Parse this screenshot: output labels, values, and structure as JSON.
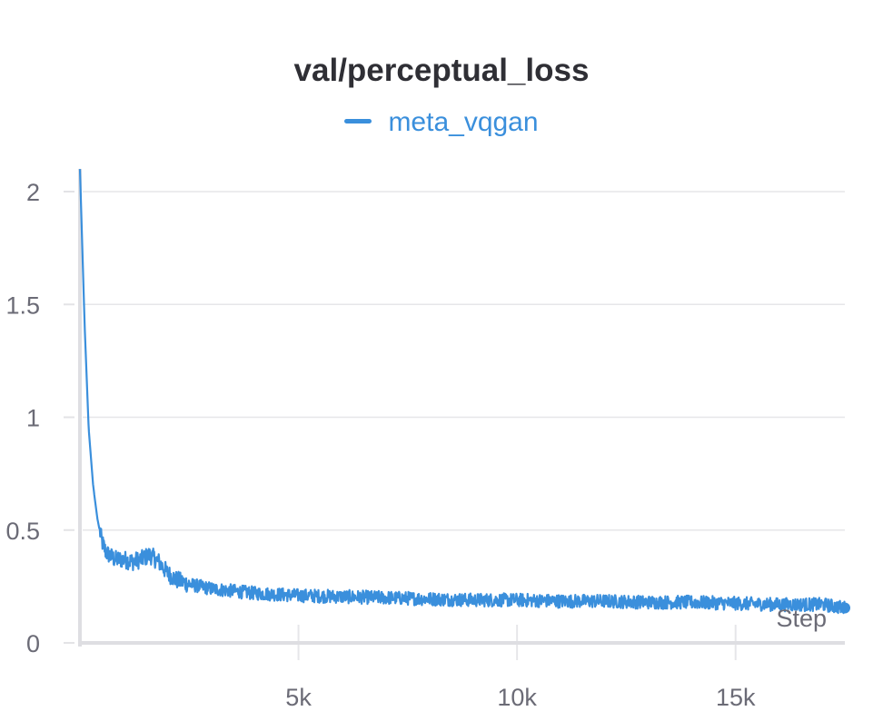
{
  "chart_data": {
    "type": "line",
    "title": "val/perceptual_loss",
    "xlabel": "Step",
    "ylabel": "",
    "xlim": [
      0,
      17500
    ],
    "ylim": [
      0,
      2.1
    ],
    "x_ticks": [
      {
        "value": 5000,
        "label": "5k"
      },
      {
        "value": 10000,
        "label": "10k"
      },
      {
        "value": 15000,
        "label": "15k"
      }
    ],
    "y_ticks": [
      {
        "value": 0,
        "label": "0"
      },
      {
        "value": 0.5,
        "label": "0.5"
      },
      {
        "value": 1,
        "label": "1"
      },
      {
        "value": 1.5,
        "label": "1.5"
      },
      {
        "value": 2,
        "label": "2"
      }
    ],
    "grid": true,
    "legend_position": "top-center",
    "series": [
      {
        "name": "meta_vqgan",
        "color": "#3a8fdc",
        "x": [
          0,
          100,
          200,
          300,
          400,
          500,
          600,
          800,
          1000,
          1200,
          1400,
          1600,
          1800,
          2000,
          2200,
          2500,
          3000,
          3500,
          4000,
          4500,
          5000,
          6000,
          7000,
          8000,
          9000,
          10000,
          11000,
          12000,
          13000,
          14000,
          15000,
          16000,
          17000,
          17500
        ],
        "y": [
          2.1,
          1.45,
          0.95,
          0.7,
          0.55,
          0.45,
          0.4,
          0.37,
          0.37,
          0.36,
          0.37,
          0.39,
          0.36,
          0.31,
          0.28,
          0.26,
          0.24,
          0.23,
          0.22,
          0.215,
          0.21,
          0.205,
          0.2,
          0.195,
          0.19,
          0.19,
          0.185,
          0.185,
          0.18,
          0.18,
          0.175,
          0.17,
          0.17,
          0.155
        ]
      }
    ]
  }
}
